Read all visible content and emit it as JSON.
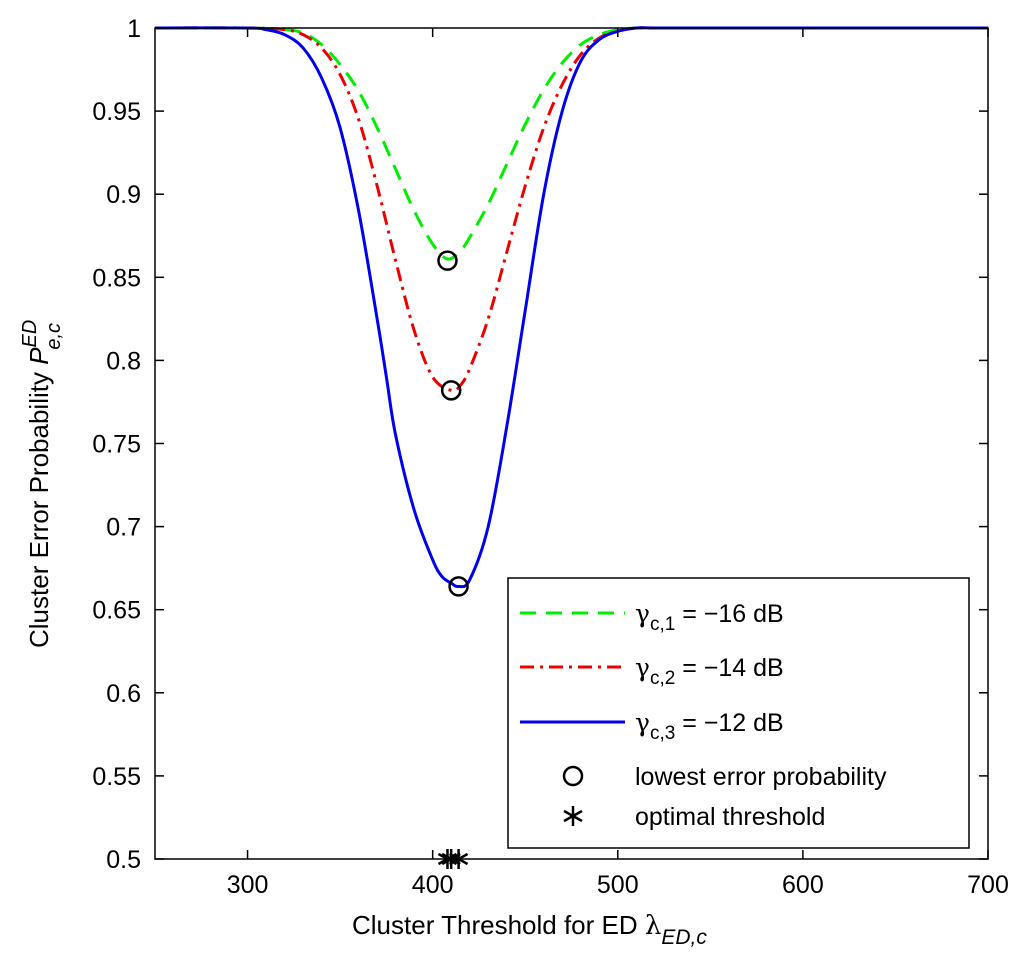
{
  "chart_data": {
    "type": "line",
    "title": "",
    "xlabel": {
      "main": "Cluster Threshold for ED ",
      "symbol": "λ",
      "subscript": "ED,c"
    },
    "ylabel": {
      "main": "Cluster Error Probability ",
      "symbol": "P",
      "subscript": "e,c",
      "superscript": "ED"
    },
    "xlim": [
      250,
      700
    ],
    "ylim": [
      0.5,
      1.0
    ],
    "xticks": [
      300,
      400,
      500,
      600,
      700
    ],
    "xtick_labels": [
      "300",
      "400",
      "500",
      "600",
      "700"
    ],
    "yticks": [
      0.5,
      0.55,
      0.6,
      0.65,
      0.7,
      0.75,
      0.8,
      0.85,
      0.9,
      0.95,
      1.0
    ],
    "ytick_labels": [
      "0.5",
      "0.55",
      "0.6",
      "0.65",
      "0.7",
      "0.75",
      "0.8",
      "0.85",
      "0.9",
      "0.95",
      "1"
    ],
    "grid": false,
    "legend_position": "bottom-right",
    "series": [
      {
        "name": "γc,1 = −16 dB",
        "legend_symbol": "γ",
        "legend_sub": "c,1",
        "legend_rest": " = −16 dB",
        "color": "#00ee00",
        "style": "dashed",
        "x": [
          250,
          300,
          320,
          330,
          340,
          350,
          360,
          370,
          380,
          390,
          400,
          408,
          415,
          420,
          430,
          440,
          450,
          460,
          470,
          480,
          490,
          500,
          510,
          520,
          540,
          600,
          700
        ],
        "y": [
          1.0,
          1.0,
          0.999,
          0.997,
          0.99,
          0.978,
          0.962,
          0.94,
          0.915,
          0.89,
          0.87,
          0.861,
          0.866,
          0.874,
          0.894,
          0.918,
          0.942,
          0.963,
          0.979,
          0.99,
          0.996,
          0.999,
          1.0,
          1.0,
          1.0,
          1.0,
          1.0
        ],
        "min_point": [
          408,
          0.86
        ]
      },
      {
        "name": "γc,2 = −14 dB",
        "legend_symbol": "γ",
        "legend_sub": "c,2",
        "legend_rest": " = −14 dB",
        "color": "#ee0000",
        "style": "dashdot",
        "x": [
          250,
          300,
          320,
          330,
          340,
          350,
          360,
          370,
          380,
          390,
          400,
          410,
          415,
          420,
          430,
          440,
          450,
          460,
          470,
          480,
          490,
          500,
          510,
          520,
          540,
          600,
          700
        ],
        "y": [
          1.0,
          1.0,
          0.999,
          0.996,
          0.988,
          0.972,
          0.945,
          0.905,
          0.86,
          0.818,
          0.79,
          0.782,
          0.785,
          0.795,
          0.825,
          0.865,
          0.905,
          0.94,
          0.966,
          0.984,
          0.994,
          0.998,
          1.0,
          1.0,
          1.0,
          1.0,
          1.0
        ],
        "min_point": [
          410,
          0.782
        ]
      },
      {
        "name": "γc,3 = −12 dB",
        "legend_symbol": "γ",
        "legend_sub": "c,3",
        "legend_rest": " = −12 dB",
        "color": "#0000ee",
        "style": "solid",
        "x": [
          250,
          300,
          310,
          320,
          330,
          340,
          350,
          360,
          370,
          375,
          380,
          390,
          400,
          405,
          410,
          414,
          420,
          430,
          440,
          450,
          460,
          470,
          480,
          490,
          500,
          510,
          520,
          540,
          600,
          700
        ],
        "y": [
          1.0,
          1.0,
          0.999,
          0.996,
          0.988,
          0.97,
          0.94,
          0.89,
          0.825,
          0.79,
          0.755,
          0.71,
          0.68,
          0.67,
          0.666,
          0.664,
          0.668,
          0.7,
          0.76,
          0.83,
          0.9,
          0.95,
          0.98,
          0.993,
          0.998,
          1.0,
          1.0,
          1.0,
          1.0,
          1.0
        ],
        "min_point": [
          414,
          0.664
        ]
      }
    ],
    "markers_legend": [
      {
        "name": "lowest error probability",
        "symbol": "circle"
      },
      {
        "name": "optimal threshold",
        "symbol": "asterisk"
      }
    ],
    "optimal_thresholds": [
      408,
      410,
      414
    ],
    "optimal_threshold_y": 0.5
  }
}
